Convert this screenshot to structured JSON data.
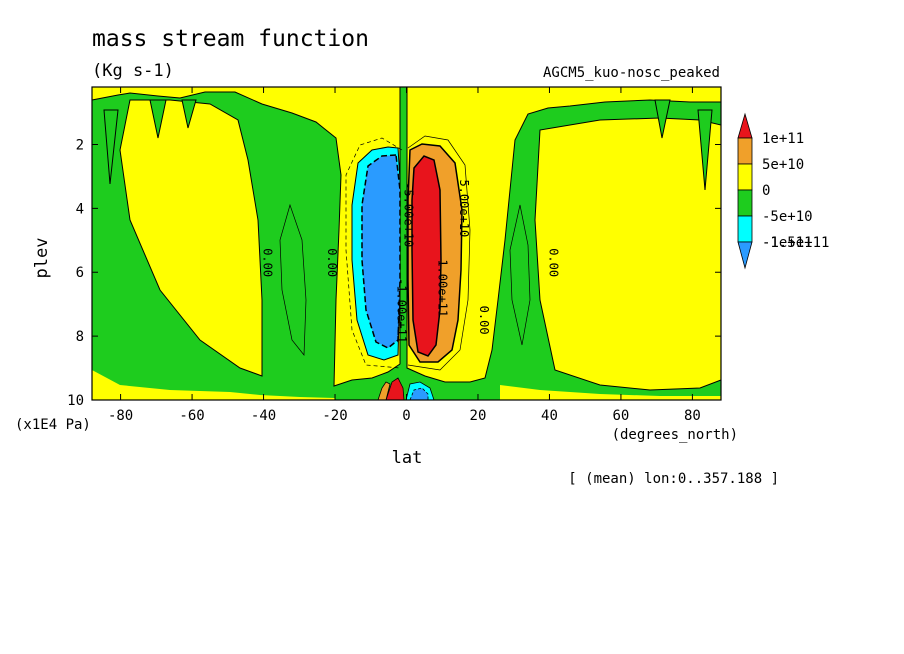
{
  "chart_data": {
    "type": "contour",
    "title": "mass stream function",
    "units": "(Kg s-1)",
    "experiment": "AGCM5_kuo-nosc_peaked",
    "xlabel": "lat",
    "xunits": "(degrees_north)",
    "ylabel": "plev",
    "yunits": "(x1E4 Pa)",
    "footnote": "[ (mean) lon:0..357.188 ]",
    "xlim": [
      -88,
      88
    ],
    "ylim": [
      10,
      0.2
    ],
    "x_ticks": [
      -80,
      -60,
      -40,
      -20,
      0,
      20,
      40,
      60,
      80
    ],
    "x_tick_labels": [
      "-80",
      "-60",
      "-40",
      "-20",
      "0",
      "20",
      "40",
      "60",
      "80"
    ],
    "y_ticks": [
      2,
      4,
      6,
      8,
      10
    ],
    "y_tick_labels": [
      "2",
      "4",
      "6",
      "8",
      "10"
    ],
    "levels": [
      {
        "label": "1e+11",
        "color": "#e8141c"
      },
      {
        "label": "5e+10",
        "color": "#f0a02a"
      },
      {
        "label": "0",
        "color": "#ffff00"
      },
      {
        "label": "-5e+10",
        "color": "#1ecc1e"
      },
      {
        "label": "-1e+11",
        "color": "#00ffff"
      },
      {
        "label": "-1.5e+11",
        "color": "#2a9bff"
      }
    ],
    "contour_labels": [
      {
        "text": "-1.00e+11",
        "lat": -2.5,
        "plev": 7.2
      },
      {
        "text": "-5.00e+10",
        "lat": -0.5,
        "plev": 4.2
      },
      {
        "text": "1.00e+11",
        "lat": 9,
        "plev": 6.5
      },
      {
        "text": "5.00e+10",
        "lat": 15,
        "plev": 4.0
      },
      {
        "text": "0.00",
        "lat": -40,
        "plev": 5.7
      },
      {
        "text": "0.00",
        "lat": -22,
        "plev": 5.7
      },
      {
        "text": "0.00",
        "lat": 20.5,
        "plev": 7.5
      },
      {
        "text": "0.00",
        "lat": 40,
        "plev": 5.7
      }
    ]
  }
}
